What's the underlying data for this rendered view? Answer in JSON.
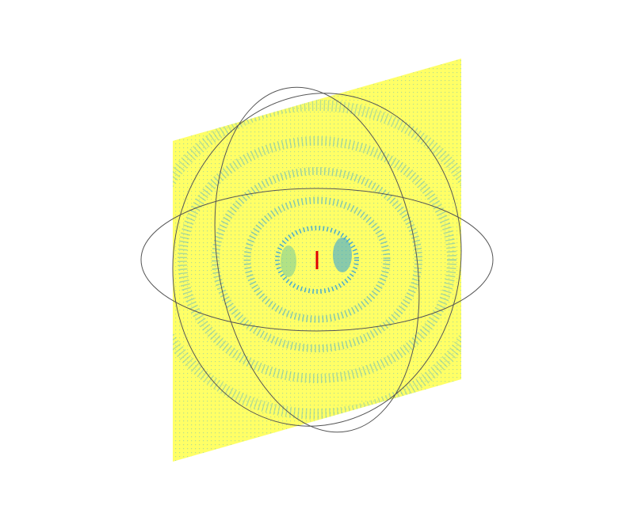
{
  "scene": {
    "background_color": "#ffffff",
    "plane_color": "#ffff66",
    "field_pattern_color": "#2a9ee0",
    "field_inner_color": "#7ecf9a",
    "ellipse_stroke_color": "#555555",
    "center_marker_color": "#e00000",
    "description": ""
  }
}
